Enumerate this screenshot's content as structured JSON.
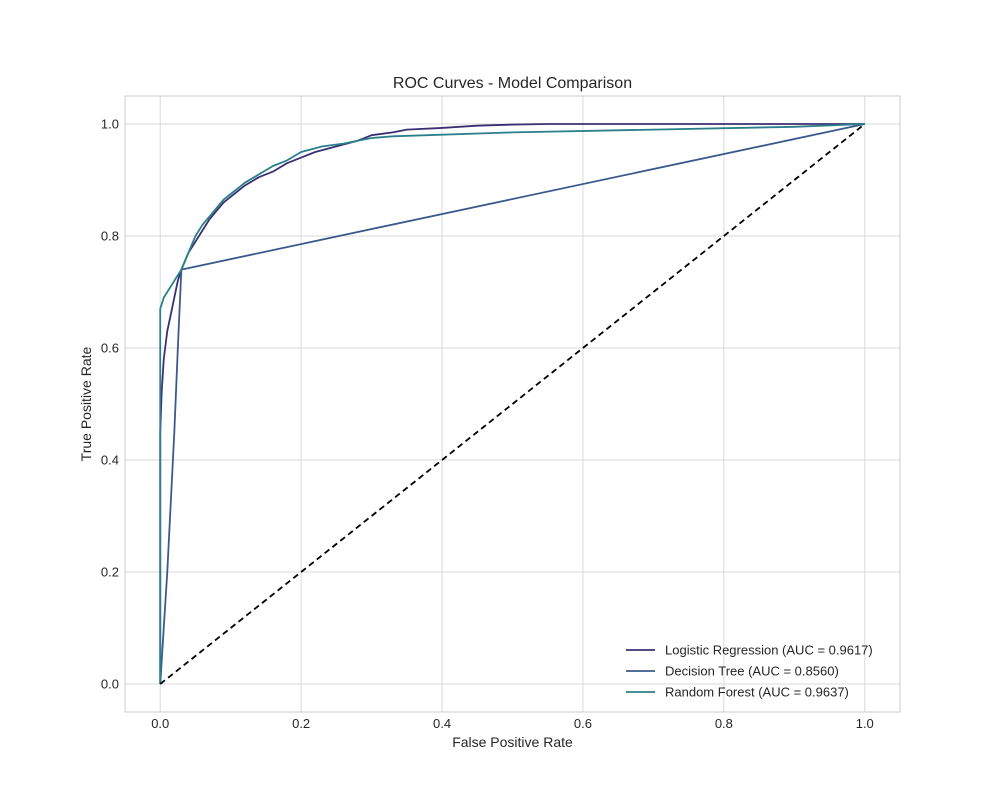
{
  "chart_data": {
    "type": "line",
    "title": "ROC Curves - Model Comparison",
    "xlabel": "False Positive Rate",
    "ylabel": "True Positive Rate",
    "xlim": [
      -0.05,
      1.05
    ],
    "ylim": [
      -0.05,
      1.05
    ],
    "x_ticks": [
      0.0,
      0.2,
      0.4,
      0.6,
      0.8,
      1.0
    ],
    "y_ticks": [
      0.0,
      0.2,
      0.4,
      0.6,
      0.8,
      1.0
    ],
    "x_tick_labels": [
      "0.0",
      "0.2",
      "0.4",
      "0.6",
      "0.8",
      "1.0"
    ],
    "y_tick_labels": [
      "0.0",
      "0.2",
      "0.4",
      "0.6",
      "0.8",
      "1.0"
    ],
    "grid": true,
    "legend_position": "bottom-right",
    "series": [
      {
        "name": "Logistic Regression (AUC = 0.9617)",
        "color": "#3b2f73",
        "points": [
          [
            0.0,
            0.0
          ],
          [
            0.0,
            0.45
          ],
          [
            0.002,
            0.52
          ],
          [
            0.005,
            0.58
          ],
          [
            0.01,
            0.63
          ],
          [
            0.015,
            0.66
          ],
          [
            0.02,
            0.69
          ],
          [
            0.025,
            0.72
          ],
          [
            0.03,
            0.74
          ],
          [
            0.035,
            0.755
          ],
          [
            0.04,
            0.77
          ],
          [
            0.05,
            0.79
          ],
          [
            0.06,
            0.81
          ],
          [
            0.07,
            0.83
          ],
          [
            0.08,
            0.845
          ],
          [
            0.09,
            0.86
          ],
          [
            0.1,
            0.87
          ],
          [
            0.11,
            0.88
          ],
          [
            0.12,
            0.89
          ],
          [
            0.14,
            0.905
          ],
          [
            0.16,
            0.915
          ],
          [
            0.18,
            0.93
          ],
          [
            0.2,
            0.94
          ],
          [
            0.22,
            0.95
          ],
          [
            0.25,
            0.96
          ],
          [
            0.28,
            0.97
          ],
          [
            0.3,
            0.98
          ],
          [
            0.33,
            0.985
          ],
          [
            0.35,
            0.99
          ],
          [
            0.4,
            0.993
          ],
          [
            0.45,
            0.997
          ],
          [
            0.5,
            0.999
          ],
          [
            0.55,
            1.0
          ],
          [
            1.0,
            1.0
          ]
        ]
      },
      {
        "name": "Decision Tree (AUC = 0.8560)",
        "color": "#3b5a8c",
        "points": [
          [
            0.0,
            0.0
          ],
          [
            0.01,
            0.2
          ],
          [
            0.02,
            0.45
          ],
          [
            0.025,
            0.6
          ],
          [
            0.03,
            0.74
          ],
          [
            1.0,
            1.0
          ]
        ]
      },
      {
        "name": "Random Forest (AUC = 0.9637)",
        "color": "#2a7f8a",
        "points": [
          [
            0.0,
            0.0
          ],
          [
            0.0,
            0.67
          ],
          [
            0.005,
            0.69
          ],
          [
            0.01,
            0.7
          ],
          [
            0.02,
            0.72
          ],
          [
            0.03,
            0.74
          ],
          [
            0.04,
            0.77
          ],
          [
            0.05,
            0.8
          ],
          [
            0.06,
            0.82
          ],
          [
            0.07,
            0.835
          ],
          [
            0.08,
            0.85
          ],
          [
            0.09,
            0.865
          ],
          [
            0.1,
            0.875
          ],
          [
            0.11,
            0.885
          ],
          [
            0.12,
            0.895
          ],
          [
            0.14,
            0.91
          ],
          [
            0.16,
            0.925
          ],
          [
            0.18,
            0.935
          ],
          [
            0.2,
            0.95
          ],
          [
            0.23,
            0.96
          ],
          [
            0.26,
            0.965
          ],
          [
            0.3,
            0.975
          ],
          [
            0.33,
            0.978
          ],
          [
            0.5,
            0.985
          ],
          [
            0.7,
            0.99
          ],
          [
            0.9,
            0.995
          ],
          [
            1.0,
            1.0
          ]
        ]
      },
      {
        "name": "",
        "color": "#000000",
        "style": "dashed",
        "points": [
          [
            0.0,
            0.0
          ],
          [
            1.0,
            1.0
          ]
        ]
      }
    ]
  }
}
